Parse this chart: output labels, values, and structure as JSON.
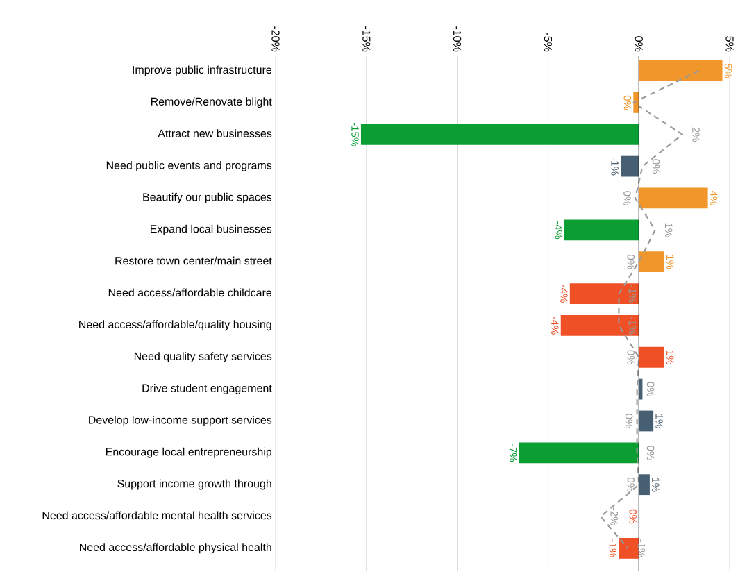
{
  "chart_data": {
    "type": "bar",
    "orientation": "horizontal",
    "categories": [
      "Improve public infrastructure",
      "Remove/Renovate blight",
      "Attract new businesses",
      "Need public events and programs",
      "Beautify our public spaces",
      "Expand local businesses",
      "Restore town center/main street",
      "Need access/affordable childcare",
      "Need access/affordable/quality housing",
      "Need quality safety services",
      "Drive student engagement",
      "Develop low-income support services",
      "Encourage local entrepreneurship",
      "Support income growth through",
      "Need access/affordable mental health services",
      "Need access/affordable physical health"
    ],
    "series": [
      {
        "type": "bar",
        "colors": [
          "#f0962a",
          "#f0962a",
          "#0a9e33",
          "#465f73",
          "#f0962a",
          "#0a9e33",
          "#f0962a",
          "#ef5026",
          "#ef5026",
          "#ef5026",
          "#465f73",
          "#465f73",
          "#0a9e33",
          "#465f73",
          "#ef5026",
          "#ef5026"
        ],
        "values": [
          4.6,
          -0.3,
          -15.3,
          -1.0,
          3.8,
          -4.1,
          1.4,
          -3.8,
          -4.3,
          1.4,
          0.2,
          0.8,
          -6.6,
          0.6,
          0,
          -1.1
        ],
        "value_labels": [
          "5%",
          "0%",
          "-15%",
          "-1%",
          "4%",
          "-4%",
          "1%",
          "-4%",
          "-4%",
          "1%",
          null,
          "1%",
          "-7%",
          "1%",
          "0%",
          "-1%"
        ]
      },
      {
        "type": "line",
        "color": "#999999",
        "line_style": "dashed",
        "values": [
          3.3,
          -0.3,
          2.4,
          0.2,
          -0.2,
          0.9,
          0.0,
          -1.1,
          -1.1,
          0.0,
          -0.1,
          -0.1,
          -0.1,
          0.0,
          -2.1,
          -0.6
        ],
        "value_labels": [
          null,
          null,
          "2%",
          "0%",
          "0%",
          "1%",
          "0%",
          "-1%",
          "-1%",
          "0%",
          "0%",
          "0%",
          "0%",
          "0%",
          "-2%",
          "-1%"
        ]
      }
    ],
    "xlim": [
      -20,
      5
    ],
    "xticks": [
      {
        "value": -20,
        "label": "-20%"
      },
      {
        "value": -15,
        "label": "-15%"
      },
      {
        "value": -10,
        "label": "-10%"
      },
      {
        "value": -5,
        "label": "-5%"
      },
      {
        "value": 0,
        "label": "0%"
      },
      {
        "value": 5,
        "label": "5%"
      }
    ],
    "grid": "x"
  }
}
